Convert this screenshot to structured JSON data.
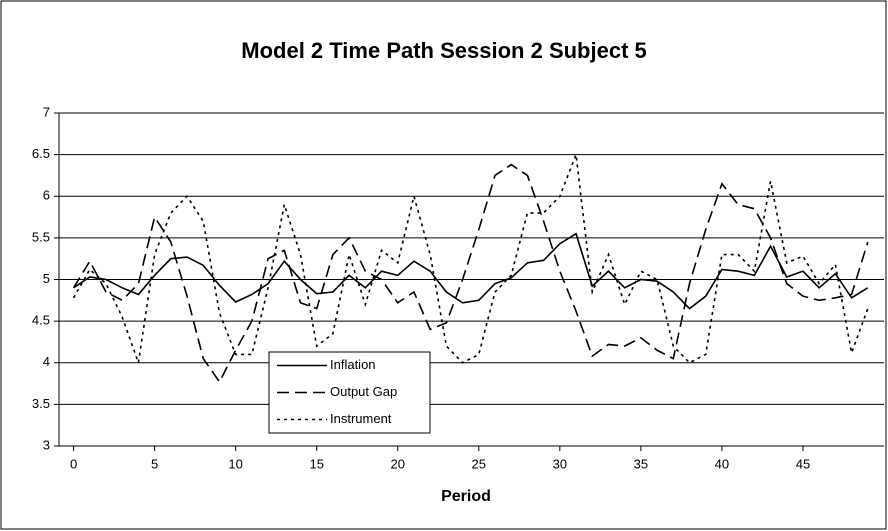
{
  "chart_data": {
    "type": "line",
    "title": "Model 2 Time Path Session 2 Subject 5",
    "x_label": "Period",
    "x": [
      0,
      1,
      2,
      3,
      4,
      5,
      6,
      7,
      8,
      9,
      10,
      11,
      12,
      13,
      14,
      15,
      16,
      17,
      18,
      19,
      20,
      21,
      22,
      23,
      24,
      25,
      26,
      27,
      28,
      29,
      30,
      31,
      32,
      33,
      34,
      35,
      36,
      37,
      38,
      39,
      40,
      41,
      42,
      43,
      44,
      45,
      46,
      47,
      48,
      49
    ],
    "series": [
      {
        "name": "Inflation",
        "color": "#000000",
        "style": "solid",
        "values": [
          4.9,
          5.03,
          5.0,
          4.9,
          4.82,
          5.05,
          5.25,
          5.27,
          5.17,
          4.93,
          4.73,
          4.82,
          4.95,
          5.22,
          5.0,
          4.83,
          4.85,
          5.05,
          4.9,
          5.1,
          5.05,
          5.22,
          5.1,
          4.85,
          4.72,
          4.75,
          4.95,
          5.02,
          5.2,
          5.23,
          5.43,
          5.55,
          4.92,
          5.1,
          4.9,
          5.0,
          4.98,
          4.85,
          4.65,
          4.8,
          5.12,
          5.1,
          5.05,
          5.4,
          5.03,
          5.1,
          4.9,
          5.07,
          4.78,
          4.9
        ]
      },
      {
        "name": "Output Gap",
        "color": "#000000",
        "style": "dashed",
        "values": [
          4.9,
          5.22,
          4.85,
          4.75,
          4.95,
          5.75,
          5.45,
          4.8,
          4.05,
          3.77,
          4.15,
          4.5,
          5.25,
          5.35,
          4.72,
          4.65,
          5.3,
          5.5,
          5.1,
          5.0,
          4.72,
          4.85,
          4.4,
          4.48,
          5.0,
          5.6,
          6.25,
          6.38,
          6.25,
          5.7,
          5.1,
          4.62,
          4.08,
          4.22,
          4.2,
          4.3,
          4.15,
          4.05,
          4.95,
          5.6,
          6.15,
          5.9,
          5.85,
          5.5,
          4.95,
          4.8,
          4.75,
          4.78,
          4.82,
          5.45
        ]
      },
      {
        "name": "Instrument",
        "color": "#000000",
        "style": "dotted",
        "values": [
          4.78,
          5.12,
          4.95,
          4.55,
          4.0,
          5.3,
          5.8,
          6.0,
          5.7,
          4.6,
          4.1,
          4.1,
          4.9,
          5.9,
          5.3,
          4.2,
          4.35,
          5.3,
          4.7,
          5.35,
          5.2,
          6.0,
          5.3,
          4.2,
          4.0,
          4.1,
          4.85,
          5.05,
          5.8,
          5.8,
          6.0,
          6.5,
          4.85,
          5.3,
          4.7,
          5.1,
          5.0,
          4.2,
          4.0,
          4.1,
          5.3,
          5.3,
          5.1,
          6.18,
          5.2,
          5.28,
          4.95,
          5.18,
          4.12,
          4.65
        ]
      }
    ],
    "xlim": [
      -0.9,
      50
    ],
    "xticks": [
      0,
      5,
      10,
      15,
      20,
      25,
      30,
      35,
      40,
      45
    ],
    "ylim": [
      3,
      7
    ],
    "yticks": [
      3,
      3.5,
      4,
      4.5,
      5,
      5.5,
      6,
      6.5,
      7
    ],
    "grid": true
  }
}
